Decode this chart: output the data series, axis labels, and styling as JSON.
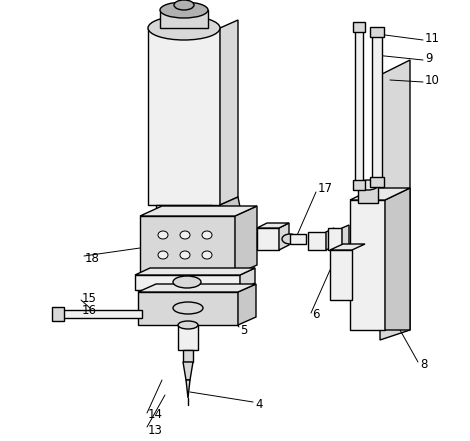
{
  "background_color": "#ffffff",
  "line_color": "#000000",
  "line_width": 1.0,
  "thin_lw": 0.7,
  "annotation_fontsize": 8.5,
  "figsize": [
    4.7,
    4.41
  ],
  "dpi": 100,
  "gray_light": "#f0f0f0",
  "gray_mid": "#d8d8d8",
  "gray_dark": "#b0b0b0",
  "gray_side": "#c8c8c8",
  "gray_top": "#e8e8e8"
}
